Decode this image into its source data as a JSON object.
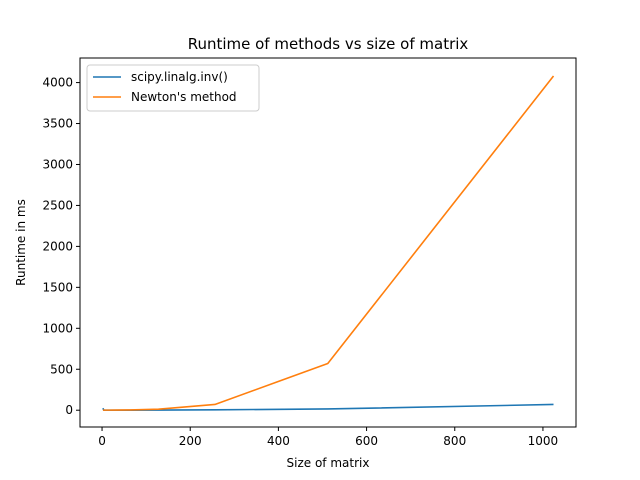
{
  "chart_data": {
    "type": "line",
    "title": "Runtime of methods vs size of matrix",
    "xlabel": "Size of matrix",
    "ylabel": "Runtime in ms",
    "xlim": [
      -50,
      1075
    ],
    "ylim": [
      -205,
      4300
    ],
    "xticks": [
      0,
      200,
      400,
      600,
      800,
      1000
    ],
    "yticks": [
      0,
      500,
      1000,
      1500,
      2000,
      2500,
      3000,
      3500,
      4000
    ],
    "grid": false,
    "legend_position": "upper-left",
    "series": [
      {
        "name": "scipy.linalg.inv()",
        "color": "#1f77b4",
        "x": [
          2,
          4,
          8,
          16,
          32,
          64,
          128,
          256,
          512,
          1024
        ],
        "y": [
          25,
          0,
          0,
          0,
          0,
          0,
          2,
          5,
          15,
          70
        ]
      },
      {
        "name": "Newton's method",
        "color": "#ff7f0e",
        "x": [
          2,
          4,
          8,
          16,
          32,
          64,
          128,
          256,
          512,
          1024
        ],
        "y": [
          0,
          1,
          1,
          1,
          2,
          3,
          12,
          70,
          570,
          4080
        ]
      }
    ]
  }
}
